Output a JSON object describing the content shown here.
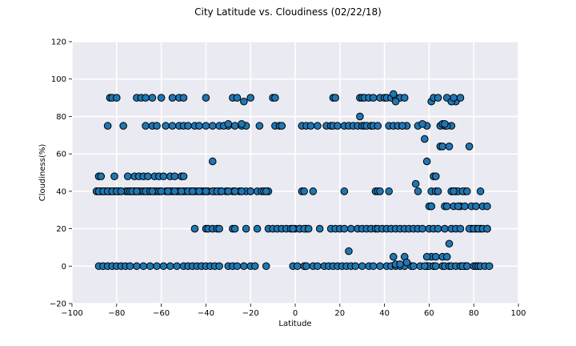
{
  "chart_data": {
    "type": "scatter",
    "title": "City Latitude vs. Cloudiness (02/22/18)",
    "xlabel": "Latitude",
    "ylabel": "Cloudiness(%)",
    "xlim": [
      -100,
      100
    ],
    "ylim": [
      -20,
      120
    ],
    "xticks": [
      -100,
      -80,
      -60,
      -40,
      -20,
      0,
      20,
      40,
      60,
      80,
      100
    ],
    "yticks": [
      -20,
      0,
      20,
      40,
      60,
      80,
      100,
      120
    ],
    "grid": true,
    "background": "#eaeaf2",
    "point_color": "#1f77b4",
    "edge_color": "#000000",
    "x": [
      -89,
      -88,
      -87,
      -86,
      -85,
      -84,
      -83,
      -82,
      -81,
      -80,
      -79,
      -78,
      -76,
      -75,
      -74,
      -73,
      -72,
      -71,
      -70,
      -69,
      -68,
      -67,
      -66,
      -65,
      -63,
      -62,
      -61,
      -60,
      -58,
      -57,
      -56,
      -55,
      -53,
      -52,
      -50,
      -49,
      -47,
      -46,
      -45,
      -44,
      -42,
      -41,
      -40,
      -39,
      -37,
      -36,
      -34,
      -33,
      -31,
      -30,
      -28,
      -27,
      -25,
      -24,
      -22,
      -20,
      -17,
      -15,
      -13,
      -12,
      -88,
      -87,
      -81,
      -75,
      -72,
      -70,
      -68,
      -66,
      -63,
      -61,
      -59,
      -56,
      -54,
      -51,
      -50,
      -88,
      -86,
      -84,
      -82,
      -80,
      -78,
      -76,
      -74,
      -71,
      -68,
      -65,
      -62,
      -59,
      -56,
      -53,
      -50,
      -48,
      -46,
      -44,
      -42,
      -40,
      -38,
      -36,
      -34,
      -30,
      -28,
      -26,
      -23,
      -20,
      -18,
      -13,
      -84,
      -77,
      -67,
      -64,
      -62,
      -58,
      -55,
      -52,
      -50,
      -48,
      -45,
      -43,
      -40,
      -37,
      -34,
      -30,
      -27,
      -24,
      -22,
      -16,
      -9,
      -7,
      -6,
      -83,
      -82,
      -80,
      -71,
      -69,
      -67,
      -64,
      -60,
      -55,
      -52,
      -50,
      -40,
      -28,
      -26,
      -23,
      -20,
      -10,
      -9,
      -45,
      -40,
      -39,
      -37,
      -35,
      -34,
      -28,
      -27,
      -22,
      -17,
      -12,
      -10,
      -8,
      -6,
      -4,
      -2,
      0,
      2,
      5,
      -89,
      -88,
      -86,
      -84,
      -82,
      -80,
      -78,
      -74,
      -73,
      -71,
      -67,
      -65,
      -64,
      -60,
      -57,
      -54,
      -51,
      -48,
      -46,
      -43,
      -40,
      -37,
      -35,
      -33,
      -30,
      -27,
      -24,
      -20,
      -14,
      -13,
      -37,
      -32,
      -30,
      -24,
      -1,
      1,
      4,
      5,
      8,
      10,
      13,
      15,
      17,
      19,
      21,
      23,
      25,
      27,
      30,
      33,
      35,
      38,
      41,
      43,
      45,
      47,
      49,
      52,
      56,
      59,
      62,
      3,
      4,
      8,
      22,
      36,
      37,
      38,
      42,
      61,
      70,
      72,
      76,
      83,
      3,
      5,
      7,
      10,
      14,
      16,
      17,
      19,
      22,
      24,
      26,
      28,
      30,
      31,
      32,
      34,
      35,
      37,
      42,
      44,
      46,
      48,
      50,
      55,
      59,
      65,
      67,
      70,
      17,
      18,
      29,
      30,
      31,
      33,
      35,
      38,
      40,
      41,
      43,
      45,
      47,
      49,
      29,
      44,
      45,
      48,
      61,
      70,
      72,
      -1,
      2,
      4,
      6,
      11,
      16,
      18,
      20,
      22,
      25,
      28,
      30,
      32,
      34,
      36,
      37,
      39,
      41,
      43,
      45,
      47,
      49,
      51,
      53,
      55,
      57,
      60,
      62,
      64,
      67,
      70,
      72,
      74,
      79,
      81,
      83,
      86,
      24,
      44,
      45,
      47,
      49,
      50,
      53,
      54,
      55,
      57,
      58,
      59,
      61,
      62,
      63,
      65,
      66,
      67,
      68,
      69,
      71,
      73,
      74,
      75,
      77,
      78,
      59,
      60,
      62,
      63,
      66,
      67,
      69,
      70,
      72,
      74,
      76,
      77,
      80,
      81,
      82,
      83,
      85,
      87,
      61,
      63,
      66,
      68,
      68,
      71,
      73,
      76,
      79,
      81,
      84,
      86,
      60,
      61,
      63,
      64,
      66,
      67,
      70,
      68,
      70,
      71,
      74,
      62,
      64,
      59,
      58,
      75,
      77,
      69,
      71,
      78,
      80,
      82,
      84,
      86
    ],
    "y": [
      40,
      40,
      40,
      40,
      40,
      40,
      40,
      40,
      40,
      40,
      40,
      40,
      40,
      40,
      40,
      40,
      40,
      40,
      40,
      40,
      40,
      40,
      40,
      40,
      40,
      40,
      40,
      40,
      40,
      40,
      40,
      40,
      40,
      40,
      40,
      40,
      40,
      40,
      40,
      40,
      40,
      40,
      40,
      40,
      40,
      40,
      40,
      40,
      40,
      40,
      40,
      40,
      40,
      40,
      40,
      40,
      40,
      40,
      40,
      40,
      48,
      48,
      48,
      48,
      48,
      48,
      48,
      48,
      48,
      48,
      48,
      48,
      48,
      48,
      48,
      0,
      0,
      0,
      0,
      0,
      0,
      0,
      0,
      0,
      0,
      0,
      0,
      0,
      0,
      0,
      0,
      0,
      0,
      0,
      0,
      0,
      0,
      0,
      0,
      0,
      0,
      0,
      0,
      0,
      0,
      0,
      75,
      75,
      75,
      75,
      75,
      75,
      75,
      75,
      75,
      75,
      75,
      75,
      75,
      75,
      75,
      75,
      75,
      75,
      75,
      75,
      75,
      75,
      75,
      90,
      90,
      90,
      90,
      90,
      90,
      90,
      90,
      90,
      90,
      90,
      90,
      90,
      90,
      88,
      90,
      90,
      90,
      20,
      20,
      20,
      20,
      20,
      20,
      20,
      20,
      20,
      20,
      20,
      20,
      20,
      20,
      20,
      20,
      20,
      20,
      20,
      40,
      40,
      40,
      40,
      40,
      40,
      40,
      40,
      40,
      40,
      40,
      40,
      40,
      40,
      40,
      40,
      40,
      40,
      40,
      40,
      40,
      40,
      40,
      40,
      40,
      40,
      40,
      40,
      40,
      40,
      56,
      75,
      76,
      76,
      0,
      0,
      0,
      0,
      0,
      0,
      0,
      0,
      0,
      0,
      0,
      0,
      0,
      0,
      0,
      0,
      0,
      0,
      0,
      0,
      0,
      0,
      0,
      0,
      0,
      0,
      0,
      40,
      40,
      40,
      40,
      40,
      40,
      40,
      40,
      40,
      40,
      40,
      40,
      40,
      75,
      75,
      75,
      75,
      75,
      75,
      75,
      75,
      75,
      75,
      75,
      75,
      75,
      75,
      75,
      75,
      75,
      75,
      75,
      75,
      75,
      75,
      75,
      75,
      75,
      75,
      75,
      75,
      90,
      90,
      90,
      90,
      90,
      90,
      90,
      90,
      90,
      90,
      90,
      90,
      90,
      90,
      80,
      92,
      88,
      75,
      88,
      88,
      88,
      20,
      20,
      20,
      20,
      20,
      20,
      20,
      20,
      20,
      20,
      20,
      20,
      20,
      20,
      20,
      20,
      20,
      20,
      20,
      20,
      20,
      20,
      20,
      20,
      20,
      20,
      20,
      20,
      20,
      20,
      20,
      20,
      20,
      20,
      20,
      20,
      20,
      8,
      5,
      1,
      1,
      5,
      2,
      0,
      44,
      40,
      76,
      68,
      56,
      32,
      48,
      48,
      64,
      64,
      32,
      75,
      64,
      40,
      40,
      32,
      40,
      40,
      64,
      0,
      0,
      0,
      0,
      0,
      0,
      0,
      0,
      0,
      0,
      0,
      0,
      0,
      0,
      0,
      0,
      0,
      0,
      5,
      5,
      5,
      5,
      32,
      32,
      32,
      32,
      32,
      32,
      32,
      32,
      32,
      32,
      40,
      40,
      76,
      76,
      40,
      90,
      88,
      90,
      90,
      90,
      90,
      5,
      0,
      0,
      0,
      12,
      40,
      20,
      20,
      20,
      20,
      20
    ]
  }
}
